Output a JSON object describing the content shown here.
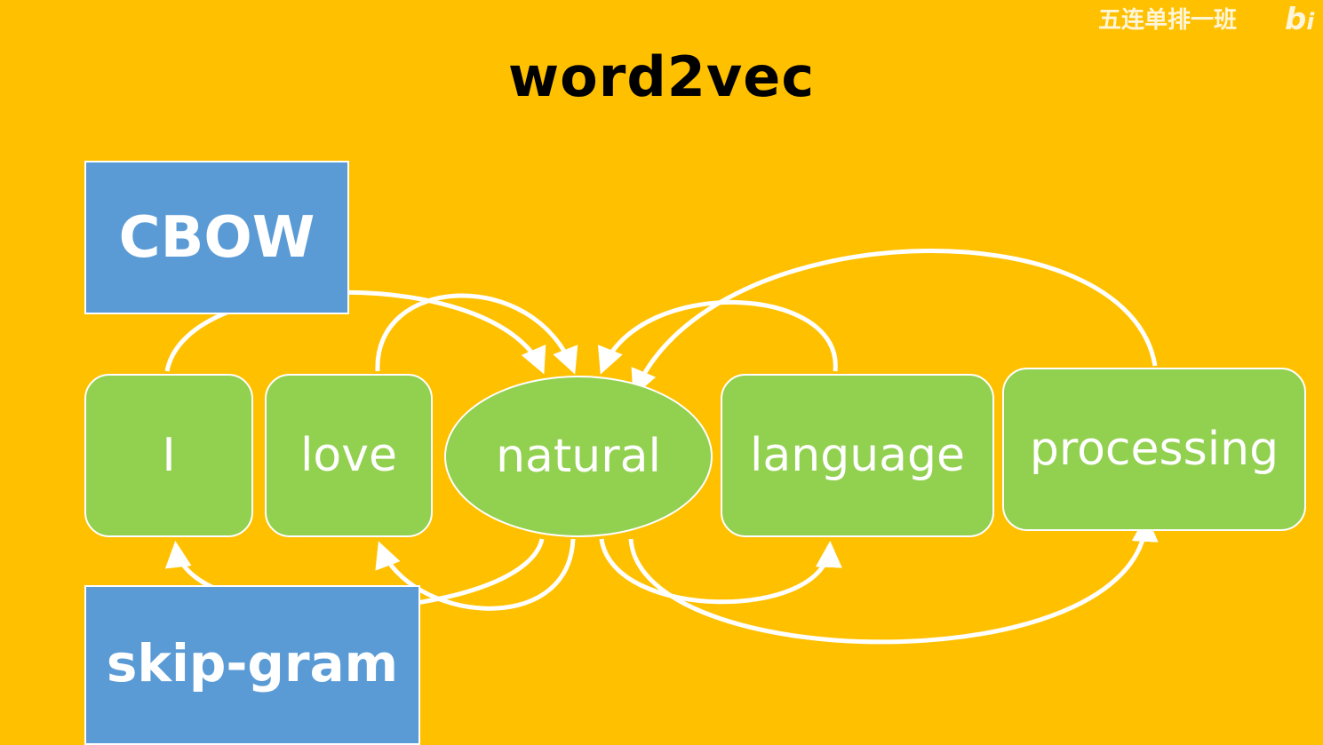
{
  "title": "word2vec",
  "watermark": {
    "text": "五连单排一班",
    "logo": "bi"
  },
  "models": {
    "cbow": "CBOW",
    "skipgram": "skip-gram"
  },
  "words": {
    "i": "I",
    "love": "love",
    "natural": "natural",
    "language": "language",
    "processing": "processing"
  },
  "colors": {
    "background": "#FFC000",
    "model_box": "#5B9BD5",
    "word_box": "#92D050",
    "arrow": "#FFFFFF"
  }
}
